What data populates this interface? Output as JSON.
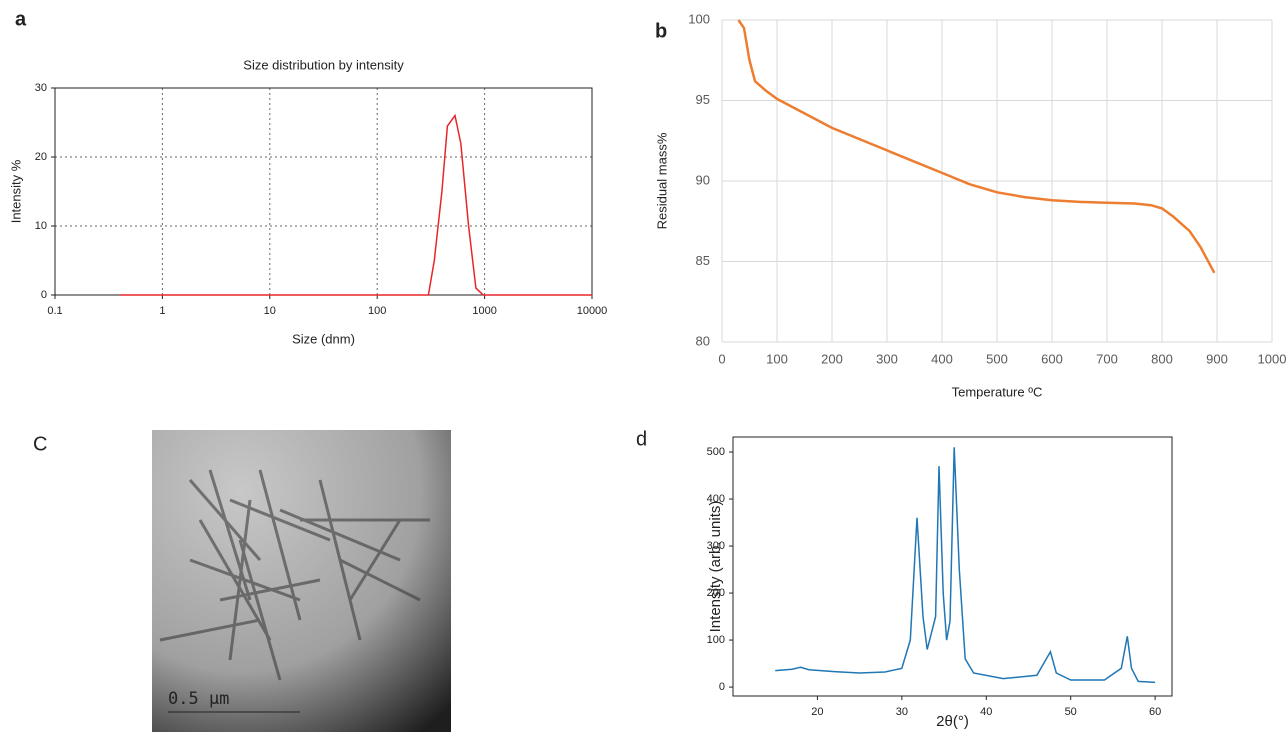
{
  "chart_data": [
    {
      "type": "line",
      "panel_label": "a",
      "title": "Size distribution by intensity",
      "x_label": "Size (dnm)",
      "y_label": "Intensity %",
      "xscale": "log",
      "xlim": [
        0.1,
        10000
      ],
      "xticks": [
        0.1,
        1,
        10,
        100,
        1000,
        10000
      ],
      "ylim": [
        0,
        30
      ],
      "yticks": [
        0,
        10,
        20,
        30
      ],
      "grid": true,
      "x": [
        0.4,
        1,
        10,
        100,
        300,
        340,
        400,
        450,
        530,
        600,
        710,
        830,
        970,
        10000
      ],
      "series": [
        {
          "color": "#e8262a",
          "values": [
            0,
            0,
            0,
            0,
            0,
            5,
            15,
            24.5,
            26,
            22,
            10,
            1,
            0,
            0
          ]
        }
      ]
    },
    {
      "type": "line",
      "panel_label": "b",
      "x_label": "Temperature ºC",
      "y_label": "Residual mass%",
      "xlim": [
        0,
        1000
      ],
      "xticks": [
        0,
        100,
        200,
        300,
        400,
        500,
        600,
        700,
        800,
        900,
        1000
      ],
      "ylim": [
        80,
        100
      ],
      "yticks": [
        80,
        85,
        90,
        95,
        100
      ],
      "grid": true,
      "x": [
        30,
        40,
        50,
        60,
        80,
        100,
        150,
        200,
        250,
        300,
        350,
        400,
        450,
        500,
        550,
        600,
        650,
        700,
        750,
        780,
        800,
        820,
        850,
        870,
        895
      ],
      "series": [
        {
          "color": "#ed7d31",
          "values": [
            100,
            99.5,
            97.5,
            96.2,
            95.6,
            95.1,
            94.2,
            93.3,
            92.6,
            91.9,
            91.2,
            90.5,
            89.8,
            89.3,
            89.0,
            88.8,
            88.7,
            88.65,
            88.6,
            88.5,
            88.3,
            87.8,
            86.9,
            85.9,
            84.3
          ]
        }
      ]
    },
    {
      "type": "line",
      "panel_label": "d",
      "x_label": "2θ(°)",
      "y_label": "Intensity (arb. units)",
      "xlim": [
        10,
        62
      ],
      "xticks": [
        20,
        30,
        40,
        50,
        60
      ],
      "ylim": [
        -19,
        532
      ],
      "yticks": [
        0,
        100,
        200,
        300,
        400,
        500
      ],
      "grid": false,
      "x": [
        15,
        17,
        18,
        19,
        22,
        25,
        28,
        30,
        31,
        31.8,
        32.5,
        33,
        34,
        34.4,
        34.9,
        35.3,
        35.7,
        36.2,
        36.8,
        37.5,
        38.5,
        42,
        46,
        47.6,
        48.3,
        50,
        54,
        56,
        56.7,
        57.2,
        58,
        60
      ],
      "series": [
        {
          "color": "#1f77b4",
          "values": [
            35,
            38,
            42,
            37,
            33,
            30,
            32,
            40,
            100,
            360,
            150,
            80,
            150,
            470,
            200,
            100,
            140,
            510,
            250,
            60,
            30,
            18,
            25,
            75,
            30,
            15,
            15,
            40,
            108,
            40,
            12,
            10
          ]
        }
      ]
    }
  ],
  "image": {
    "panel_label": "C",
    "scale_bar": "0.5 µm"
  }
}
